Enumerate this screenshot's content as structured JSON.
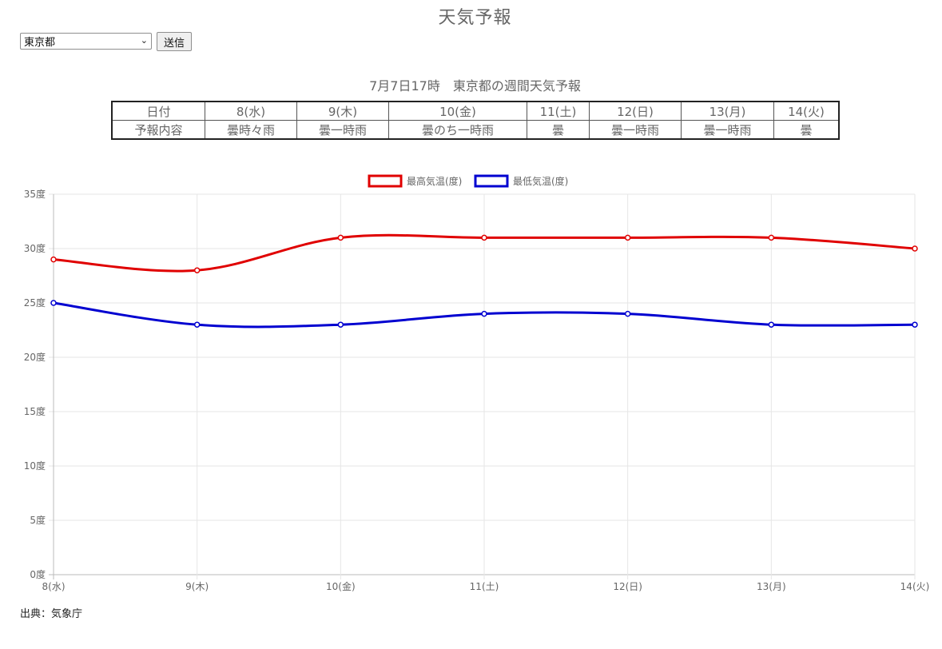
{
  "page": {
    "title": "天気予報"
  },
  "controls": {
    "prefecture_selected": "東京都",
    "submit_label": "送信"
  },
  "forecast": {
    "title": "7月7日17時　東京都の週間天気予報",
    "row_headers": [
      "日付",
      "予報内容"
    ],
    "dates": [
      "8(水)",
      "9(木)",
      "10(金)",
      "11(土)",
      "12(日)",
      "13(月)",
      "14(火)"
    ],
    "weather": [
      "曇時々雨",
      "曇一時雨",
      "曇のち一時雨",
      "曇",
      "曇一時雨",
      "曇一時雨",
      "曇"
    ]
  },
  "chart_data": {
    "type": "line",
    "categories": [
      "8(水)",
      "9(木)",
      "10(金)",
      "11(土)",
      "12(日)",
      "13(月)",
      "14(火)"
    ],
    "series": [
      {
        "name": "最高気温(度)",
        "color": "#e00000",
        "values": [
          29,
          28,
          31,
          31,
          31,
          31,
          30
        ]
      },
      {
        "name": "最低気温(度)",
        "color": "#0000d0",
        "values": [
          25,
          23,
          23,
          24,
          24,
          23,
          23
        ]
      }
    ],
    "y_ticks": [
      "0度",
      "5度",
      "10度",
      "15度",
      "20度",
      "25度",
      "30度",
      "35度"
    ],
    "ylim": [
      0,
      35
    ],
    "y_step": 5,
    "grid": true,
    "legend_position": "top"
  },
  "source": {
    "text": "出典：気象庁"
  }
}
